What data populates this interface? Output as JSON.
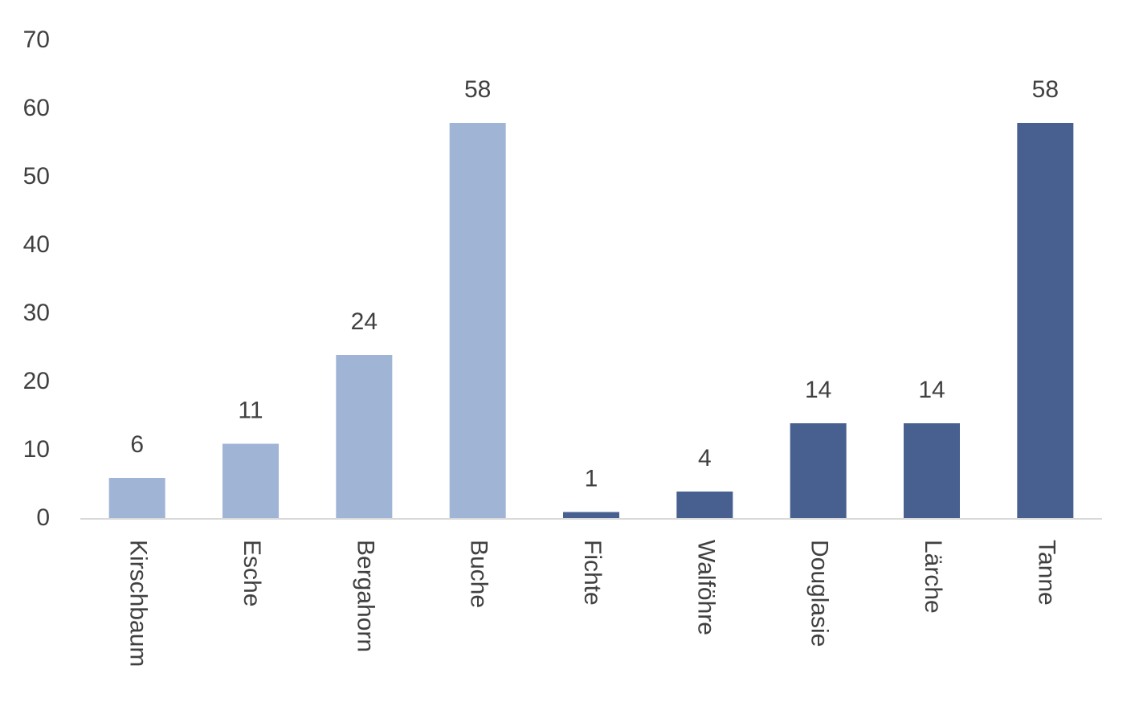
{
  "chart_data": {
    "type": "bar",
    "categories": [
      "Kirschbaum",
      "Esche",
      "Bergahorn",
      "Buche",
      "Fichte",
      "Walföhre",
      "Douglasie",
      "Lärche",
      "Tanne"
    ],
    "values": [
      6,
      11,
      24,
      58,
      1,
      4,
      14,
      14,
      58
    ],
    "colors": [
      "#a0b4d6",
      "#a0b4d6",
      "#a0b4d6",
      "#a0b4d6",
      "#476090",
      "#476090",
      "#476090",
      "#476090",
      "#476090"
    ],
    "ylim": [
      0,
      70
    ],
    "yticks": [
      0,
      10,
      20,
      30,
      40,
      50,
      60,
      70
    ],
    "grid": false
  }
}
